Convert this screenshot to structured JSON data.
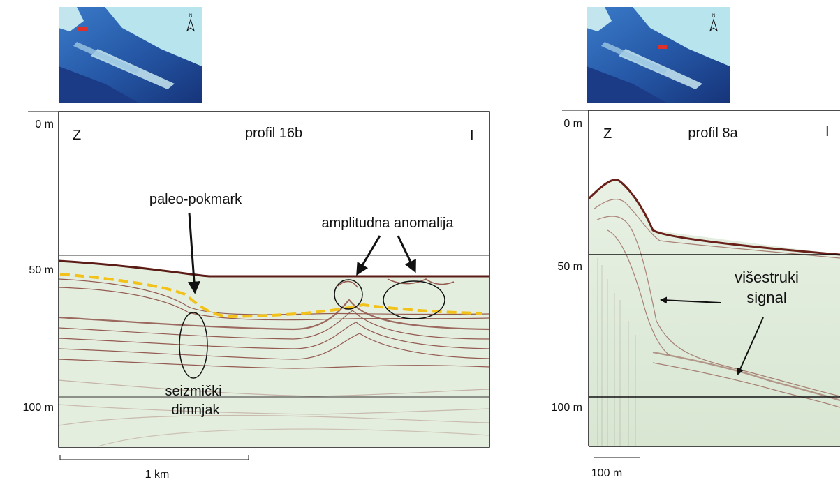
{
  "left_panel": {
    "depth_labels": [
      "0 m",
      "50 m",
      "100 m"
    ],
    "west_label": "Z",
    "east_label": "I",
    "title": "profil 16b",
    "annotations": {
      "paleo_pockmark": "paleo-pokmark",
      "amplitude_anomaly": "amplitudna anomalija",
      "seismic_chimney_line1": "seizmički",
      "seismic_chimney_line2": "dimnjak"
    },
    "scale_bar": "1 km"
  },
  "right_panel": {
    "depth_labels": [
      "0 m",
      "50 m",
      "100 m"
    ],
    "west_label": "Z",
    "east_label": "I",
    "title": "profil 8a",
    "annotations": {
      "multiple_line1": "višestruki",
      "multiple_line2": "signal"
    },
    "scale_bar": "100 m"
  },
  "colors": {
    "seismic_bg": "#e6efe1",
    "reflector": "#7a2a22",
    "interpreted_horizon": "#f2c21b",
    "map_sea": "#1f56a8",
    "map_land": "#b8e4ee",
    "location_marker": "#e0302a"
  },
  "icons": [
    "north-arrow-icon"
  ]
}
